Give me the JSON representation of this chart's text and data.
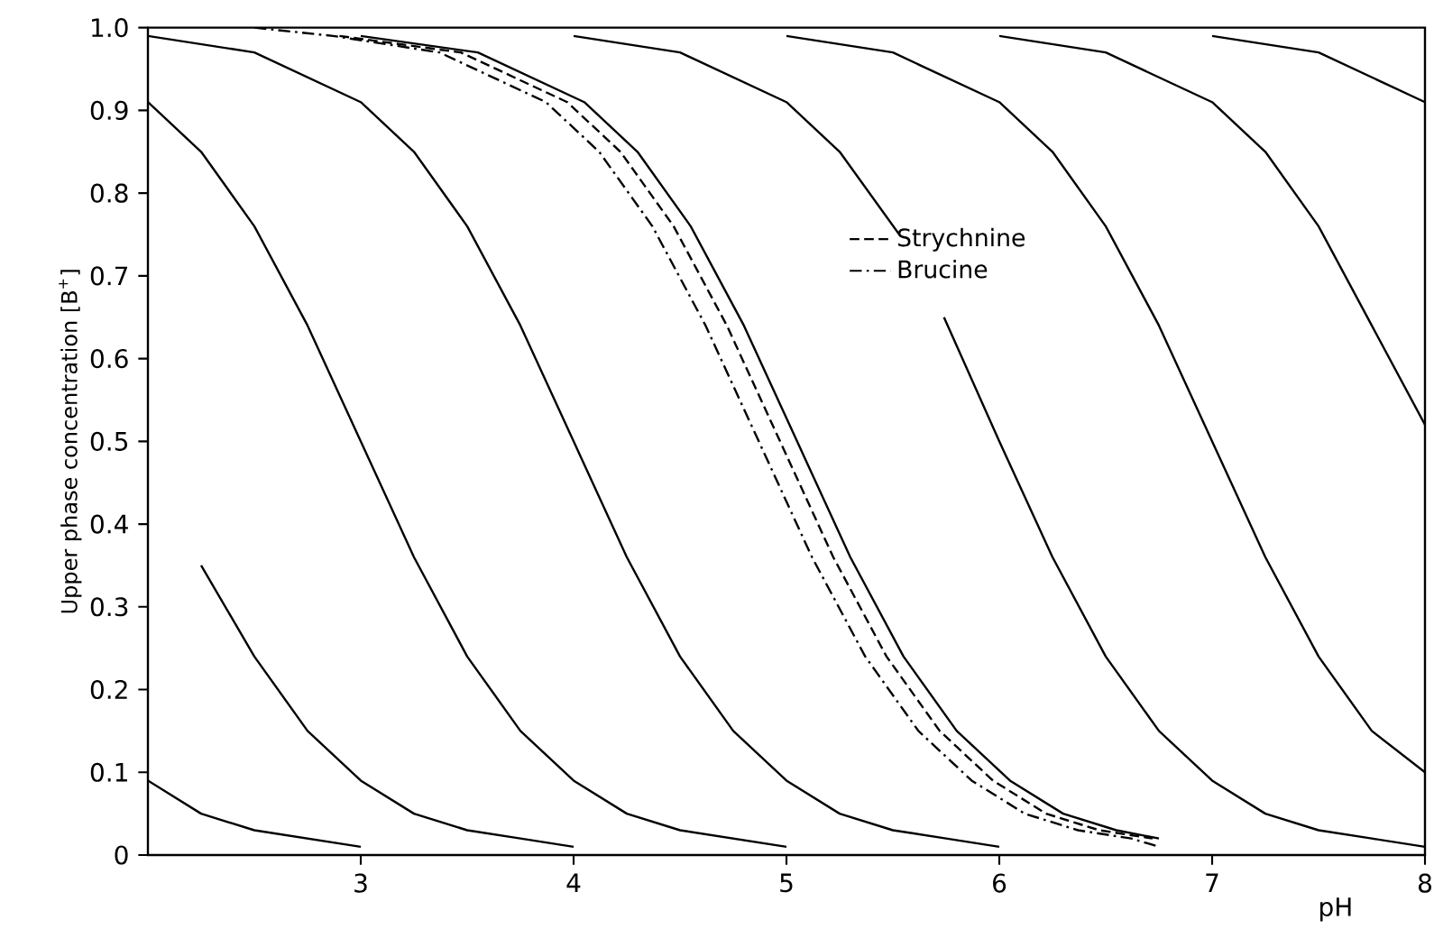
{
  "chart_data": {
    "type": "line",
    "xlabel": "pH",
    "ylabel": "Upper phase concentration [B$^{+}$]",
    "xlim": [
      2,
      8
    ],
    "ylim": [
      0,
      1
    ],
    "xticks": [
      3,
      4,
      5,
      6,
      7,
      8
    ],
    "yticks": [
      0,
      0.1,
      0.2,
      0.3,
      0.4,
      0.5,
      0.6,
      0.7,
      0.8,
      0.9,
      {
        "value": 1,
        "label": "1.0"
      }
    ],
    "grid": false,
    "legend": "top",
    "marker": "none",
    "series": [
      {
        "color": "#000000",
        "line_style": "solid",
        "x": [
          2,
          2.25,
          2.5,
          2.75,
          3
        ],
        "values": [
          0.09,
          0.05,
          0.03,
          0.02,
          0.01
        ]
      },
      {
        "color": "#000000",
        "line_style": "solid",
        "x": [
          2.25,
          2.5,
          2.75,
          3,
          3.25,
          3.5,
          3.75,
          4
        ],
        "values": [
          0.35,
          0.24,
          0.15,
          0.09,
          0.05,
          0.03,
          0.02,
          0.01
        ]
      },
      {
        "color": "#000000",
        "line_style": "solid",
        "x": [
          2,
          2.25,
          2.5,
          2.75,
          3,
          3.25,
          3.5,
          3.75,
          4,
          4.25,
          4.5,
          4.75,
          5
        ],
        "values": [
          0.91,
          0.85,
          0.76,
          0.64,
          0.5,
          0.36,
          0.24,
          0.15,
          0.09,
          0.05,
          0.03,
          0.02,
          0.01
        ]
      },
      {
        "color": "#000000",
        "line_style": "solid",
        "x": [
          2,
          2.5,
          3,
          3.25,
          3.5,
          3.75,
          4,
          4.25,
          4.5,
          4.75,
          5,
          5.25,
          5.5,
          5.75,
          6
        ],
        "values": [
          0.99,
          0.97,
          0.91,
          0.85,
          0.76,
          0.64,
          0.5,
          0.36,
          0.24,
          0.15,
          0.09,
          0.05,
          0.03,
          0.02,
          0.01
        ]
      },
      {
        "color": "#000000",
        "line_style": "solid",
        "x": [
          3,
          3.55,
          4.05,
          4.3,
          4.55,
          4.8,
          5.05,
          5.3,
          5.55,
          5.8,
          6.05,
          6.3,
          6.55,
          6.75
        ],
        "values": [
          0.99,
          0.97,
          0.91,
          0.85,
          0.76,
          0.64,
          0.5,
          0.36,
          0.24,
          0.15,
          0.09,
          0.05,
          0.03,
          0.02
        ]
      },
      {
        "name": "Strychnine",
        "color": "#000000",
        "line_style": "dashed",
        "x": [
          2.9,
          3.47,
          3.97,
          4.22,
          4.47,
          4.72,
          4.97,
          5.22,
          5.47,
          5.72,
          5.97,
          6.22,
          6.47,
          6.72
        ],
        "values": [
          0.99,
          0.97,
          0.91,
          0.85,
          0.76,
          0.64,
          0.5,
          0.36,
          0.24,
          0.15,
          0.09,
          0.05,
          0.03,
          0.02
        ]
      },
      {
        "name": "Brucine",
        "color": "#000000",
        "line_style": "dashdot",
        "x": [
          2.5,
          2.87,
          3.37,
          3.87,
          4.12,
          4.37,
          4.62,
          4.87,
          5.12,
          5.37,
          5.62,
          5.87,
          6.12,
          6.37,
          6.62,
          6.75
        ],
        "values": [
          1.0,
          0.99,
          0.97,
          0.91,
          0.85,
          0.76,
          0.64,
          0.5,
          0.36,
          0.24,
          0.15,
          0.09,
          0.05,
          0.03,
          0.02,
          0.01
        ]
      },
      {
        "color": "#000000",
        "line_style": "solid",
        "x": [
          4,
          4.5,
          5,
          5.25,
          5.53,
          5.6,
          5.74,
          6,
          6.25,
          6.5,
          6.75,
          7,
          7.25,
          7.5,
          7.75,
          8
        ],
        "values": [
          0.99,
          0.97,
          0.91,
          0.85,
          0.75,
          null,
          0.65,
          0.5,
          0.36,
          0.24,
          0.15,
          0.09,
          0.05,
          0.03,
          0.02,
          0.01
        ]
      },
      {
        "color": "#000000",
        "line_style": "solid",
        "x": [
          5,
          5.5,
          6,
          6.25,
          6.5,
          6.75,
          7,
          7.25,
          7.5,
          7.75,
          8
        ],
        "values": [
          0.99,
          0.97,
          0.91,
          0.85,
          0.76,
          0.64,
          0.5,
          0.36,
          0.24,
          0.15,
          0.1
        ]
      },
      {
        "color": "#000000",
        "line_style": "solid",
        "x": [
          6,
          6.5,
          7,
          7.25,
          7.5,
          7.75,
          8
        ],
        "values": [
          0.99,
          0.97,
          0.91,
          0.85,
          0.76,
          0.64,
          0.52
        ]
      },
      {
        "color": "#000000",
        "line_style": "solid",
        "x": [
          7,
          7.5,
          8
        ],
        "values": [
          0.99,
          0.97,
          0.91
        ]
      }
    ]
  }
}
